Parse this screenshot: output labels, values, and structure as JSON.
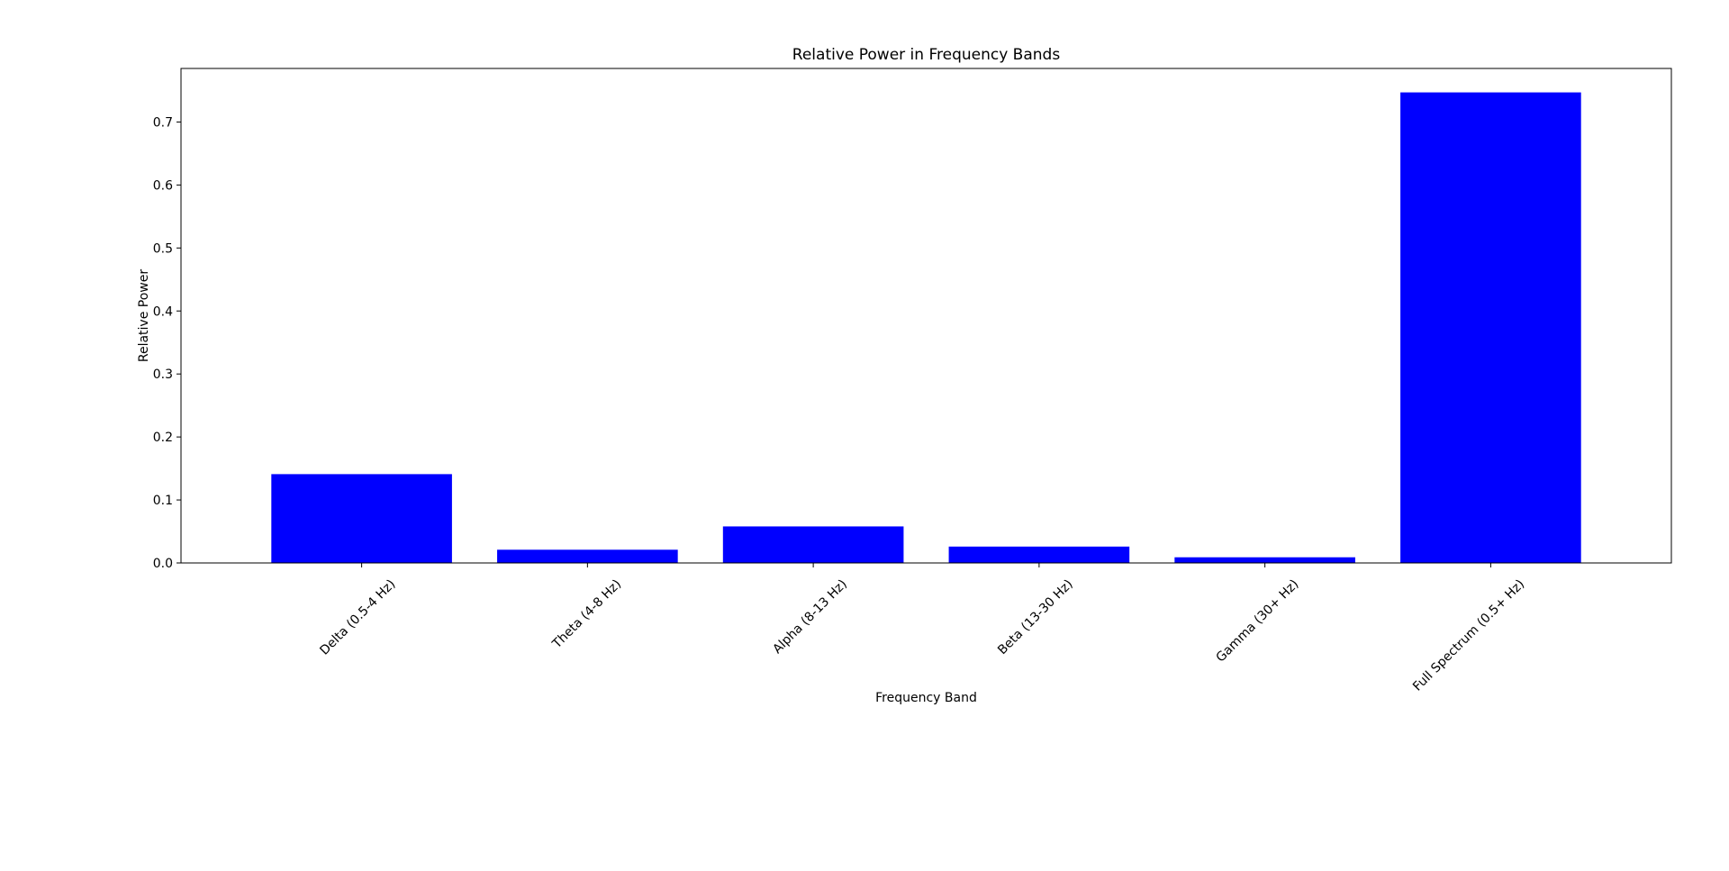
{
  "chart_data": {
    "type": "bar",
    "title": "Relative Power in Frequency Bands",
    "xlabel": "Frequency Band",
    "ylabel": "Relative Power",
    "categories": [
      "Delta (0.5-4 Hz)",
      "Theta (4-8 Hz)",
      "Alpha (8-13 Hz)",
      "Beta (13-30 Hz)",
      "Gamma (30+ Hz)",
      "Full Spectrum (0.5+ Hz)"
    ],
    "values": [
      0.141,
      0.021,
      0.058,
      0.026,
      0.009,
      0.747
    ],
    "ylim": [
      0,
      0.785
    ],
    "yticks": [
      0.0,
      0.1,
      0.2,
      0.3,
      0.4,
      0.5,
      0.6,
      0.7
    ],
    "ytick_labels": [
      "0.0",
      "0.1",
      "0.2",
      "0.3",
      "0.4",
      "0.5",
      "0.6",
      "0.7"
    ],
    "bar_color": "#0000ff",
    "grid": false,
    "legend": false
  }
}
